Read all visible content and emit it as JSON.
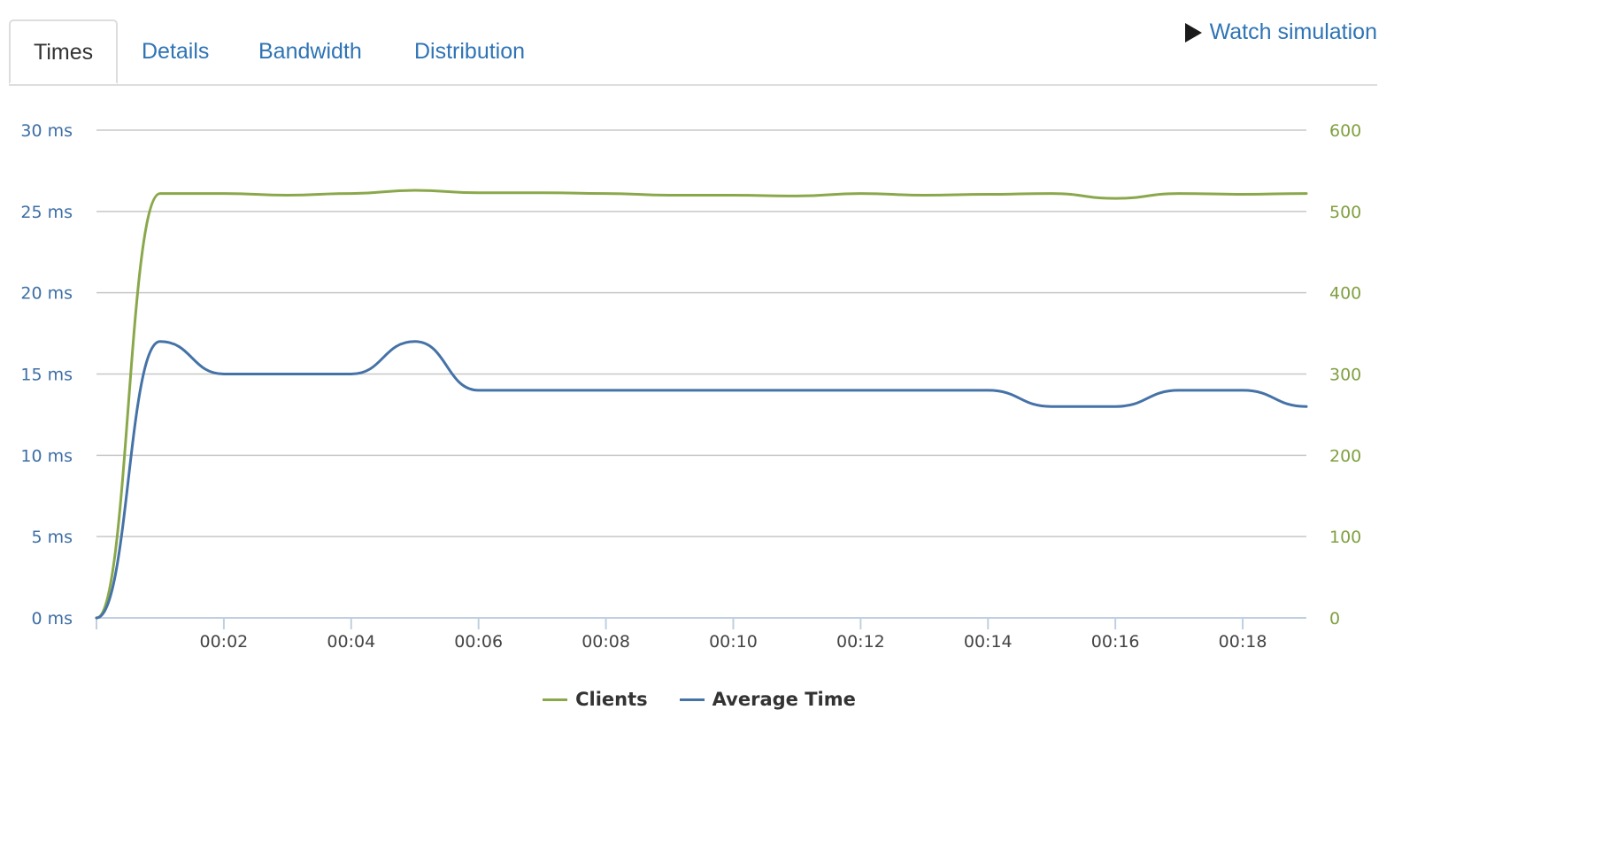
{
  "tabs": [
    {
      "label": "Times",
      "active": true
    },
    {
      "label": "Details",
      "active": false
    },
    {
      "label": "Bandwidth",
      "active": false
    },
    {
      "label": "Distribution",
      "active": false
    }
  ],
  "watch_simulation": {
    "label": "Watch simulation",
    "icon": "play-icon"
  },
  "colors": {
    "clients": "#8aa84b",
    "average_time": "#4572a7",
    "grid": "#c8c8c8",
    "axis": "#c0d0e0"
  },
  "chart_data": {
    "type": "line",
    "grid": true,
    "legend_position": "bottom-center",
    "x_ticks": [
      "00:02",
      "00:04",
      "00:06",
      "00:08",
      "00:10",
      "00:12",
      "00:14",
      "00:16",
      "00:18"
    ],
    "x_range": [
      0,
      19
    ],
    "y_left": {
      "ticks": [
        "0 ms",
        "5 ms",
        "10 ms",
        "15 ms",
        "20 ms",
        "25 ms",
        "30 ms"
      ],
      "range": [
        0,
        30
      ]
    },
    "y_right": {
      "ticks": [
        "0",
        "100",
        "200",
        "300",
        "400",
        "500",
        "600"
      ],
      "range": [
        0,
        600
      ]
    },
    "series": [
      {
        "name": "Clients",
        "axis": "right",
        "x": [
          0,
          1,
          2,
          3,
          4,
          5,
          6,
          7,
          8,
          9,
          10,
          11,
          12,
          13,
          14,
          15,
          16,
          17,
          18,
          19
        ],
        "values": [
          0,
          522,
          522,
          520,
          522,
          526,
          523,
          523,
          522,
          520,
          520,
          519,
          522,
          520,
          521,
          522,
          516,
          522,
          521,
          522
        ]
      },
      {
        "name": "Average Time",
        "axis": "left",
        "x": [
          0,
          1,
          2,
          3,
          4,
          5,
          6,
          7,
          8,
          9,
          10,
          11,
          12,
          13,
          14,
          15,
          16,
          17,
          18,
          19
        ],
        "values": [
          0,
          17,
          15,
          15,
          15,
          17,
          14,
          14,
          14,
          14,
          14,
          14,
          14,
          14,
          14,
          13,
          13,
          14,
          14,
          13
        ]
      }
    ]
  }
}
